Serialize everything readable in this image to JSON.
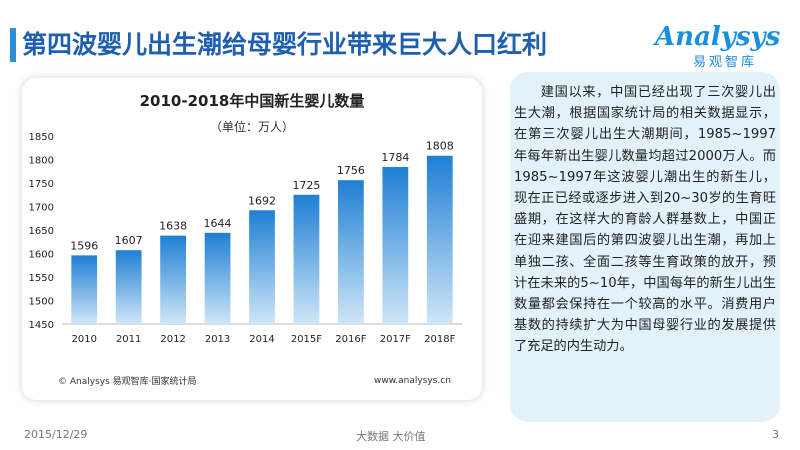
{
  "header": {
    "title": "第四波婴儿出生潮给母婴行业带来巨大人口红利",
    "logo_text": "Analysys",
    "logo_cn": "易观智库"
  },
  "chart_data": {
    "type": "bar",
    "title": "2010-2018年中国新生婴儿数量",
    "unit": "（单位：万人）",
    "categories": [
      "2010",
      "2011",
      "2012",
      "2013",
      "2014",
      "2015F",
      "2016F",
      "2017F",
      "2018F"
    ],
    "values": [
      1596,
      1607,
      1638,
      1644,
      1692,
      1725,
      1756,
      1784,
      1808
    ],
    "ylim": [
      1450,
      1850
    ],
    "yticks": [
      "1450",
      "1500",
      "1550",
      "1600",
      "1650",
      "1700",
      "1750",
      "1800",
      "1850"
    ],
    "xlabel": "",
    "ylabel": "",
    "grid": false,
    "colors": {
      "bar_top": "#1f7fd4",
      "bar_bottom": "#cfe6f7"
    },
    "source": "© Analysys 易观智库·国家统计局",
    "site": "www.analysys.cn"
  },
  "side_text": "建国以来，中国已经出现了三次婴儿出生大潮，根据国家统计局的相关数据显示，在第三次婴儿出生大潮期间，1985~1997年每年新出生婴儿数量均超过2000万人。而1985~1997年这波婴儿潮出生的新生儿，现在正已经或逐步进入到20~30岁的生育旺盛期，在这样大的育龄人群基数上，中国正在迎来建国后的第四波婴儿出生潮，再加上单独二孩、全面二孩等生育政策的放开，预计在未来的5~10年，中国每年的新生儿出生数量都会保持在一个较高的水平。消费用户基数的持续扩大为中国母婴行业的发展提供了充足的内生动力。",
  "footer": {
    "date": "2015/12/29",
    "slogan": "大数据    大价值",
    "page": "3"
  }
}
